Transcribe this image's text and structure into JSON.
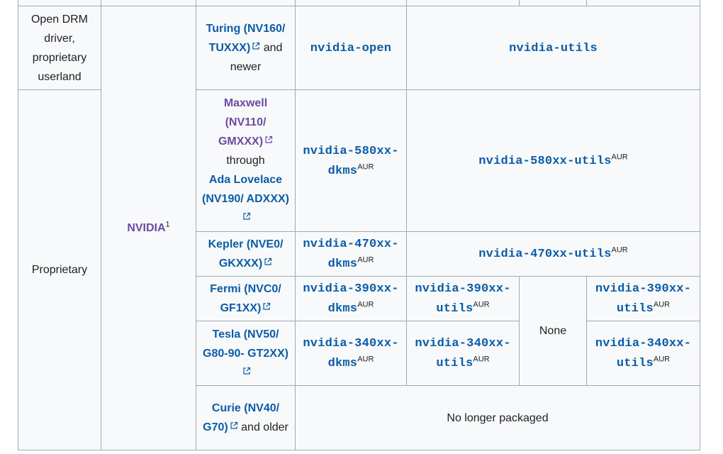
{
  "colors": {
    "link": "#0a5ca8",
    "visited": "#6b4ba1",
    "border": "#a2a9b1",
    "cell_bg": "#f8f9fa"
  },
  "rows": {
    "open": {
      "type": "Open DRM driver, proprietary userland",
      "gpu_name": "Turing (NV160/ TUXXX)",
      "gpu_suffix": " and newer",
      "kernel": "nvidia-open",
      "utils": "nvidia-utils"
    },
    "proprietary_label": "Proprietary",
    "vendor": "NVIDIA",
    "vendor_note": "1",
    "maxwell": {
      "gpu_name": "Maxwell (NV110/ GMXXX)",
      "gpu_mid": "through",
      "gpu_name2": "Ada Lovelace (NV190/ ADXXX)",
      "kernel": "nvidia-580xx-dkms",
      "kernel_sup": "AUR",
      "utils": "nvidia-580xx-utils",
      "utils_sup": "AUR"
    },
    "kepler": {
      "gpu_name": "Kepler (NVE0/ GKXXX)",
      "kernel": "nvidia-470xx-dkms",
      "kernel_sup": "AUR",
      "utils": "nvidia-470xx-utils",
      "utils_sup": "AUR"
    },
    "fermi": {
      "gpu_name": "Fermi (NVC0/ GF1XX)",
      "kernel": "nvidia-390xx-dkms",
      "kernel_sup": "AUR",
      "utils": "nvidia-390xx-utils",
      "utils_sup": "AUR",
      "utils2": "nvidia-390xx-utils",
      "utils2_sup": "AUR"
    },
    "none_label": "None",
    "tesla": {
      "gpu_name": "Tesla (NV50/ G80-90- GT2XX)",
      "kernel": "nvidia-340xx-dkms",
      "kernel_sup": "AUR",
      "utils": "nvidia-340xx-utils",
      "utils_sup": "AUR",
      "utils2": "nvidia-340xx-utils",
      "utils2_sup": "AUR"
    },
    "curie": {
      "gpu_name": "Curie (NV40/ G70)",
      "gpu_suffix": " and older",
      "status": "No longer packaged"
    }
  }
}
